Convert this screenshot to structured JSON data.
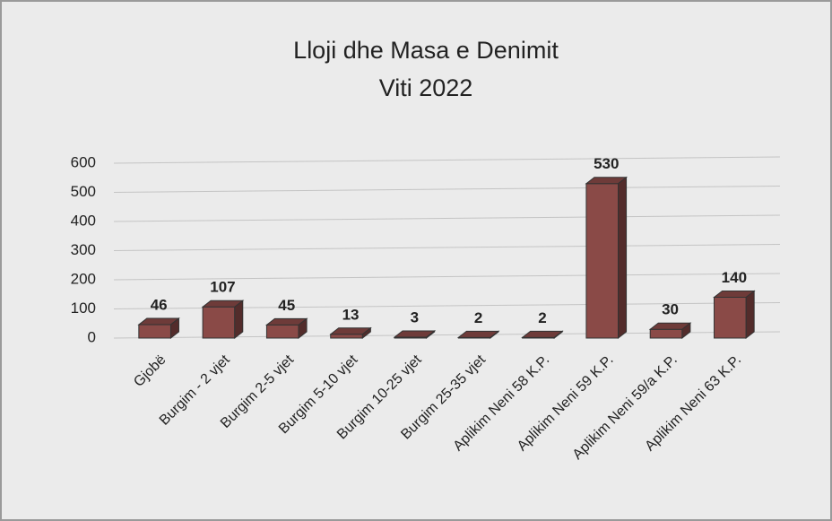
{
  "chart_data": {
    "type": "bar3d",
    "title": "Lloji dhe Masa e Denimit",
    "subtitle": "Viti 2022",
    "categories": [
      "Gjobë",
      "Burgim - 2 vjet",
      "Burgim 2-5 vjet",
      "Burgim 5-10 vjet",
      "Burgim 10-25 vjet",
      "Burgim 25-35 vjet",
      "Aplikim Neni 58 K.P.",
      "Aplikim Neni 59 K.P.",
      "Aplikim Neni 59/a K.P.",
      "Aplikim Neni 63 K.P."
    ],
    "values": [
      46,
      107,
      45,
      13,
      3,
      2,
      2,
      530,
      30,
      140
    ],
    "color": "#8a4a47",
    "ylim": [
      0,
      600
    ],
    "yticks": [
      0,
      100,
      200,
      300,
      400,
      500,
      600
    ],
    "grid": true
  }
}
